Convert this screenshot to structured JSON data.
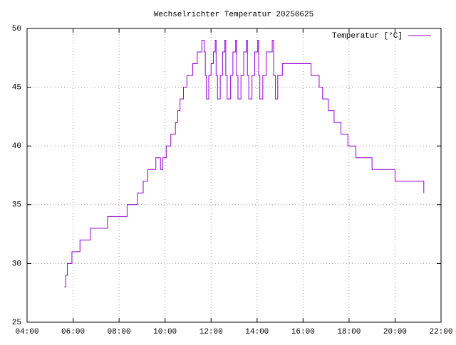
{
  "chart_data": {
    "type": "line",
    "title": "Wechselrichter Temperatur 20250625",
    "x": [
      5.62,
      5.68,
      5.75,
      5.95,
      6.3,
      6.75,
      7.5,
      8.35,
      8.8,
      9.05,
      9.25,
      9.6,
      9.8,
      9.9,
      10.05,
      10.25,
      10.45,
      10.55,
      10.65,
      10.8,
      10.95,
      11.2,
      11.4,
      11.6,
      11.7,
      11.75,
      11.8,
      11.9,
      12.0,
      12.1,
      12.18,
      12.22,
      12.28,
      12.4,
      12.5,
      12.6,
      12.64,
      12.7,
      12.85,
      12.95,
      13.07,
      13.11,
      13.17,
      13.3,
      13.42,
      13.54,
      13.58,
      13.64,
      13.78,
      13.9,
      14.03,
      14.07,
      14.12,
      14.25,
      14.4,
      14.66,
      14.72,
      14.8,
      14.9,
      15.1,
      16.35,
      16.7,
      16.85,
      17.1,
      17.35,
      17.65,
      17.95,
      18.3,
      19.0,
      20.0,
      21.25
    ],
    "series": [
      {
        "name": "Temperatur [°C]",
        "color": "#9400d3",
        "values": [
          28,
          29,
          30,
          31,
          32,
          33,
          34,
          35,
          36,
          37,
          38,
          39,
          38,
          39,
          40,
          41,
          42,
          43,
          44,
          45,
          46,
          47,
          48,
          49,
          48,
          46,
          44,
          46,
          47,
          48,
          49,
          46,
          44,
          46,
          48,
          49,
          46,
          44,
          46,
          48,
          49,
          46,
          44,
          46,
          48,
          49,
          46,
          44,
          46,
          48,
          49,
          46,
          44,
          46,
          48,
          49,
          46,
          44,
          46,
          47,
          46,
          45,
          44,
          43,
          42,
          41,
          40,
          39,
          38,
          37,
          36
        ]
      }
    ],
    "xlim": [
      4,
      22
    ],
    "xticks": [
      {
        "value": 4,
        "label": "04:00"
      },
      {
        "value": 6,
        "label": "06:00"
      },
      {
        "value": 8,
        "label": "08:00"
      },
      {
        "value": 10,
        "label": "10:00"
      },
      {
        "value": 12,
        "label": "12:00"
      },
      {
        "value": 14,
        "label": "14:00"
      },
      {
        "value": 16,
        "label": "16:00"
      },
      {
        "value": 18,
        "label": "18:00"
      },
      {
        "value": 20,
        "label": "20:00"
      },
      {
        "value": 22,
        "label": "22:00"
      }
    ],
    "ylim": [
      25,
      50
    ],
    "yticks": [
      25,
      30,
      35,
      40,
      45,
      50
    ],
    "grid": true,
    "legend": "upper right",
    "step": true
  }
}
